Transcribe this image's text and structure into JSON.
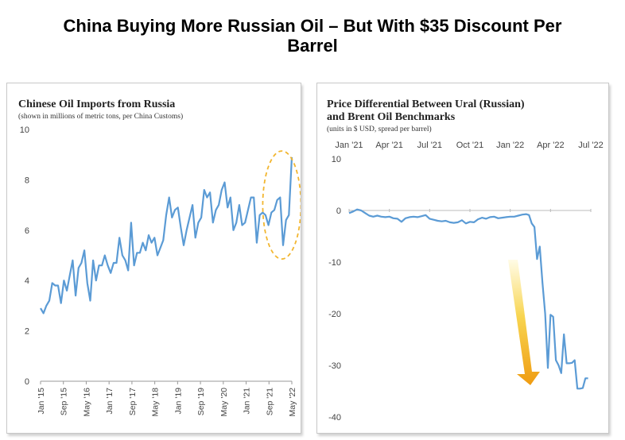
{
  "page": {
    "title_line1": "China Buying More Russian Oil – But With $35 Discount Per",
    "title_line2": "Barrel"
  },
  "chart_data": [
    {
      "type": "line",
      "title": "Chinese Oil Imports from Russia",
      "subtitle": "(shown in millions of metric tons, per China Customs)",
      "xlabel": "",
      "ylabel": "",
      "ylim": [
        0,
        10
      ],
      "y_ticks": [
        0,
        2,
        4,
        6,
        8,
        10
      ],
      "x_tick_labels": [
        "Jan '15",
        "Sep '15",
        "May '16",
        "Jan '17",
        "Sep '17",
        "May '18",
        "Jan '19",
        "Sep '19",
        "May '20",
        "Jan '21",
        "Sep '21",
        "May '22"
      ],
      "x_tick_months": [
        0,
        8,
        16,
        24,
        32,
        40,
        48,
        56,
        64,
        72,
        80,
        88
      ],
      "x_range_months": [
        0,
        88
      ],
      "annotation": "dashed orange ellipse highlighting the late-2021 to 2022 surge",
      "annotation_color": "#f2b630",
      "line_color": "#5b9bd5",
      "series": [
        {
          "name": "Imports (million metric tons)",
          "values": [
            2.9,
            2.7,
            3.0,
            3.2,
            3.9,
            3.8,
            3.8,
            3.1,
            4.0,
            3.6,
            4.2,
            4.8,
            3.4,
            4.5,
            4.7,
            5.2,
            3.9,
            3.2,
            4.8,
            4.0,
            4.6,
            4.6,
            5.0,
            4.6,
            4.3,
            4.7,
            4.7,
            5.7,
            5.0,
            4.8,
            4.4,
            6.3,
            4.6,
            5.1,
            5.1,
            5.5,
            5.2,
            5.8,
            5.5,
            5.7,
            5.0,
            5.3,
            5.6,
            6.6,
            7.3,
            6.5,
            6.8,
            6.9,
            6.1,
            5.4,
            6.0,
            6.5,
            7.0,
            5.7,
            6.3,
            6.5,
            7.6,
            7.3,
            7.5,
            6.3,
            6.8,
            7.0,
            7.6,
            7.9,
            6.9,
            7.3,
            6.0,
            6.3,
            7.0,
            6.2,
            6.3,
            6.8,
            7.3,
            7.3,
            5.5,
            6.6,
            6.7,
            6.6,
            6.2,
            6.7,
            6.8,
            7.2,
            7.3,
            5.4,
            6.4,
            6.6,
            8.9
          ]
        }
      ]
    },
    {
      "type": "line",
      "title_line1": "Price Differential Between Ural (Russian)",
      "title_line2": "and Brent Oil Benchmarks",
      "subtitle": "(units in $ USD, spread per barrel)",
      "xlabel": "",
      "ylabel": "",
      "ylim": [
        -40,
        10
      ],
      "y_ticks": [
        10,
        0,
        -10,
        -20,
        -30,
        -40
      ],
      "x_tick_labels": [
        "Jan '21",
        "Apr '21",
        "Jul '21",
        "Oct '21",
        "Jan '22",
        "Apr '22",
        "Jul '22"
      ],
      "x_tick_positions": [
        0,
        3,
        6,
        9,
        12,
        15,
        18
      ],
      "x_range": [
        0,
        18
      ],
      "x_axis_position": "top",
      "annotation": "yellow-to-orange gradient arrow pointing down toward the widening discount",
      "line_color": "#5b9bd5",
      "series": [
        {
          "name": "Ural minus Brent spread ($/bbl)",
          "x": [
            0,
            0.3,
            0.6,
            0.9,
            1.2,
            1.5,
            1.8,
            2.1,
            2.4,
            2.7,
            3.0,
            3.3,
            3.6,
            3.9,
            4.2,
            4.5,
            4.8,
            5.1,
            5.4,
            5.7,
            6.0,
            6.3,
            6.6,
            6.9,
            7.2,
            7.5,
            7.8,
            8.1,
            8.4,
            8.7,
            9.0,
            9.3,
            9.6,
            9.9,
            10.2,
            10.5,
            10.8,
            11.1,
            11.4,
            11.7,
            12.0,
            12.3,
            12.6,
            12.9,
            13.2,
            13.4,
            13.6,
            13.8,
            14.0,
            14.2,
            14.4,
            14.6,
            14.8,
            15.0,
            15.2,
            15.4,
            15.6,
            15.8,
            16.0,
            16.2,
            16.4,
            16.6,
            16.8,
            17.0,
            17.2,
            17.4,
            17.6,
            17.8
          ],
          "values": [
            -0.5,
            -0.2,
            0.2,
            0.0,
            -0.5,
            -1.0,
            -1.2,
            -1.0,
            -1.2,
            -1.3,
            -1.2,
            -1.5,
            -1.6,
            -2.2,
            -1.5,
            -1.3,
            -1.2,
            -1.3,
            -1.1,
            -0.9,
            -1.6,
            -1.8,
            -2.0,
            -2.1,
            -2.0,
            -2.3,
            -2.4,
            -2.3,
            -1.9,
            -2.5,
            -2.2,
            -2.3,
            -1.7,
            -1.4,
            -1.6,
            -1.3,
            -1.2,
            -1.5,
            -1.4,
            -1.3,
            -1.2,
            -1.2,
            -1.0,
            -0.8,
            -0.7,
            -0.9,
            -2.5,
            -3.2,
            -9.4,
            -7.0,
            -14.0,
            -20.0,
            -30.5,
            -20.2,
            -20.6,
            -29.0,
            -30.0,
            -31.5,
            -24.0,
            -29.6,
            -29.6,
            -29.5,
            -29.0,
            -34.5,
            -34.5,
            -34.4,
            -32.5,
            -32.5
          ]
        }
      ]
    }
  ]
}
